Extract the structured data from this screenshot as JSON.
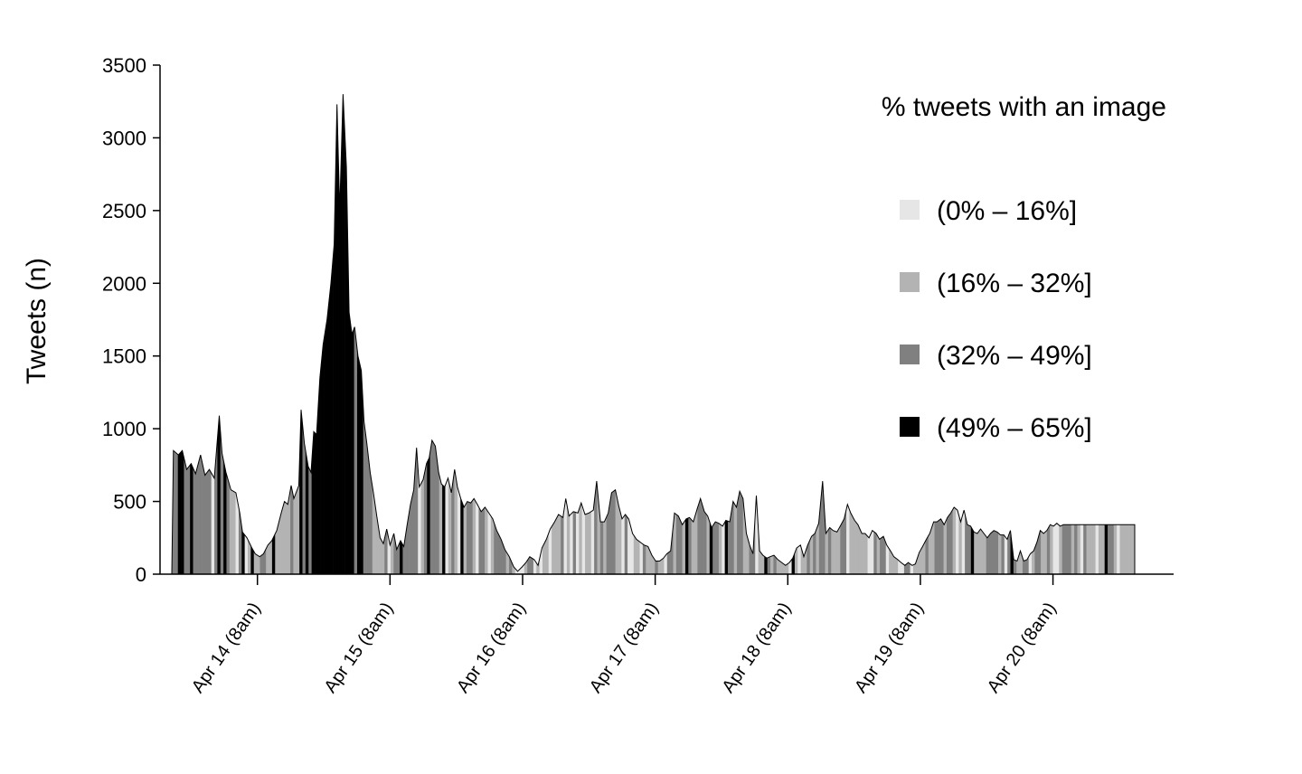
{
  "chart_data": {
    "type": "area",
    "ylabel": "Tweets (n)",
    "xlabel": "",
    "ylim": [
      0,
      3500
    ],
    "y_ticks": [
      0,
      500,
      1000,
      1500,
      2000,
      2500,
      3000,
      3500
    ],
    "x_ticks": [
      {
        "label": "Apr 14 (8am)",
        "hour": 8
      },
      {
        "label": "Apr 15 (8am)",
        "hour": 32
      },
      {
        "label": "Apr 16 (8am)",
        "hour": 56
      },
      {
        "label": "Apr 17 (8am)",
        "hour": 80
      },
      {
        "label": "Apr 18 (8am)",
        "hour": 104
      },
      {
        "label": "Apr 19 (8am)",
        "hour": 128
      },
      {
        "label": "Apr 20 (8am)",
        "hour": 152
      }
    ],
    "xlim_hours": [
      -7.5,
      166.8
    ],
    "series_points": [
      [
        -7.5,
        0
      ],
      [
        -7.2,
        850
      ],
      [
        -6.3,
        820
      ],
      [
        -5.6,
        850
      ],
      [
        -4.8,
        720
      ],
      [
        -4,
        760
      ],
      [
        -3.2,
        690
      ],
      [
        -2.3,
        820
      ],
      [
        -1.5,
        680
      ],
      [
        -0.7,
        720
      ],
      [
        0.2,
        660
      ],
      [
        1.1,
        1090
      ],
      [
        1.6,
        830
      ],
      [
        2.3,
        700
      ],
      [
        3.2,
        580
      ],
      [
        4.1,
        560
      ],
      [
        4.8,
        420
      ],
      [
        5.3,
        290
      ],
      [
        6.1,
        250
      ],
      [
        7.0,
        180
      ],
      [
        7.6,
        140
      ],
      [
        8.4,
        120
      ],
      [
        9.1,
        140
      ],
      [
        9.9,
        200
      ],
      [
        10.6,
        230
      ],
      [
        11.5,
        300
      ],
      [
        12.3,
        420
      ],
      [
        12.9,
        500
      ],
      [
        13.5,
        480
      ],
      [
        14.1,
        610
      ],
      [
        14.6,
        520
      ],
      [
        15.5,
        610
      ],
      [
        15.9,
        1130
      ],
      [
        16.5,
        900
      ],
      [
        17.2,
        740
      ],
      [
        17.7,
        700
      ],
      [
        18.2,
        980
      ],
      [
        18.7,
        960
      ],
      [
        19.3,
        1350
      ],
      [
        19.9,
        1580
      ],
      [
        20.6,
        1750
      ],
      [
        21.3,
        2000
      ],
      [
        21.9,
        2270
      ],
      [
        22.4,
        3230
      ],
      [
        22.9,
        2500
      ],
      [
        23.5,
        3300
      ],
      [
        24.1,
        2800
      ],
      [
        24.6,
        1800
      ],
      [
        25.1,
        1650
      ],
      [
        25.6,
        1700
      ],
      [
        26.2,
        1500
      ],
      [
        26.8,
        1400
      ],
      [
        27.3,
        1050
      ],
      [
        27.8,
        900
      ],
      [
        28.4,
        700
      ],
      [
        29,
        560
      ],
      [
        29.6,
        400
      ],
      [
        30.2,
        250
      ],
      [
        30.8,
        210
      ],
      [
        31.4,
        310
      ],
      [
        32.0,
        200
      ],
      [
        32.7,
        280
      ],
      [
        33.2,
        170
      ],
      [
        33.9,
        230
      ],
      [
        34.5,
        190
      ],
      [
        35.1,
        340
      ],
      [
        35.7,
        480
      ],
      [
        36.3,
        580
      ],
      [
        36.8,
        870
      ],
      [
        37.3,
        600
      ],
      [
        38.0,
        650
      ],
      [
        38.6,
        760
      ],
      [
        39.1,
        800
      ],
      [
        39.6,
        920
      ],
      [
        40.2,
        880
      ],
      [
        40.8,
        700
      ],
      [
        41.3,
        620
      ],
      [
        41.9,
        600
      ],
      [
        42.5,
        660
      ],
      [
        43.1,
        560
      ],
      [
        43.7,
        720
      ],
      [
        44.2,
        600
      ],
      [
        44.8,
        520
      ],
      [
        45.4,
        460
      ],
      [
        46.0,
        500
      ],
      [
        46.6,
        490
      ],
      [
        47.2,
        520
      ],
      [
        47.8,
        480
      ],
      [
        48.5,
        430
      ],
      [
        49.2,
        460
      ],
      [
        49.9,
        420
      ],
      [
        50.6,
        380
      ],
      [
        51.3,
        300
      ],
      [
        52.1,
        240
      ],
      [
        52.8,
        170
      ],
      [
        53.6,
        120
      ],
      [
        54.4,
        50
      ],
      [
        55.1,
        20
      ],
      [
        55.9,
        50
      ],
      [
        56.6,
        80
      ],
      [
        57.3,
        120
      ],
      [
        58.1,
        100
      ],
      [
        58.8,
        60
      ],
      [
        59.5,
        180
      ],
      [
        60.3,
        240
      ],
      [
        61.0,
        310
      ],
      [
        61.8,
        360
      ],
      [
        62.5,
        410
      ],
      [
        63.3,
        390
      ],
      [
        63.8,
        520
      ],
      [
        64.4,
        400
      ],
      [
        65.2,
        430
      ],
      [
        66.0,
        420
      ],
      [
        66.6,
        490
      ],
      [
        67.3,
        410
      ],
      [
        68.0,
        420
      ],
      [
        68.8,
        440
      ],
      [
        69.4,
        640
      ],
      [
        70.1,
        360
      ],
      [
        70.8,
        360
      ],
      [
        71.5,
        420
      ],
      [
        72.1,
        560
      ],
      [
        72.8,
        580
      ],
      [
        73.4,
        470
      ],
      [
        74.0,
        380
      ],
      [
        74.6,
        410
      ],
      [
        75.2,
        380
      ],
      [
        75.9,
        280
      ],
      [
        76.6,
        240
      ],
      [
        77.3,
        220
      ],
      [
        78.0,
        200
      ],
      [
        78.7,
        190
      ],
      [
        79.4,
        130
      ],
      [
        80.1,
        90
      ],
      [
        80.8,
        90
      ],
      [
        81.5,
        110
      ],
      [
        82.1,
        140
      ],
      [
        82.8,
        160
      ],
      [
        83.5,
        420
      ],
      [
        84.2,
        400
      ],
      [
        84.9,
        340
      ],
      [
        85.6,
        380
      ],
      [
        86.2,
        390
      ],
      [
        86.9,
        360
      ],
      [
        87.6,
        450
      ],
      [
        88.2,
        520
      ],
      [
        88.9,
        430
      ],
      [
        89.5,
        400
      ],
      [
        90.2,
        320
      ],
      [
        90.9,
        360
      ],
      [
        91.5,
        350
      ],
      [
        92.2,
        330
      ],
      [
        92.8,
        370
      ],
      [
        93.5,
        360
      ],
      [
        94.1,
        500
      ],
      [
        94.7,
        460
      ],
      [
        95.3,
        570
      ],
      [
        95.9,
        520
      ],
      [
        96.5,
        280
      ],
      [
        97.1,
        200
      ],
      [
        97.7,
        140
      ],
      [
        98.3,
        540
      ],
      [
        98.9,
        160
      ],
      [
        99.5,
        130
      ],
      [
        100.2,
        110
      ],
      [
        100.8,
        120
      ],
      [
        101.5,
        130
      ],
      [
        102.2,
        100
      ],
      [
        102.9,
        80
      ],
      [
        103.6,
        60
      ],
      [
        104.3,
        80
      ],
      [
        104.9,
        110
      ],
      [
        105.6,
        180
      ],
      [
        106.3,
        200
      ],
      [
        106.9,
        120
      ],
      [
        107.6,
        200
      ],
      [
        108.3,
        260
      ],
      [
        108.9,
        280
      ],
      [
        109.6,
        350
      ],
      [
        110.3,
        640
      ],
      [
        110.9,
        280
      ],
      [
        111.6,
        320
      ],
      [
        112.2,
        300
      ],
      [
        112.9,
        290
      ],
      [
        113.5,
        330
      ],
      [
        114.2,
        380
      ],
      [
        114.8,
        480
      ],
      [
        115.4,
        420
      ],
      [
        116.1,
        370
      ],
      [
        116.7,
        340
      ],
      [
        117.4,
        280
      ],
      [
        118.0,
        280
      ],
      [
        118.7,
        250
      ],
      [
        119.3,
        300
      ],
      [
        120.0,
        280
      ],
      [
        120.6,
        240
      ],
      [
        121.3,
        260
      ],
      [
        121.9,
        200
      ],
      [
        122.6,
        160
      ],
      [
        123.2,
        120
      ],
      [
        123.9,
        100
      ],
      [
        124.5,
        80
      ],
      [
        125.2,
        60
      ],
      [
        125.8,
        80
      ],
      [
        126.5,
        60
      ],
      [
        127.1,
        70
      ],
      [
        127.8,
        150
      ],
      [
        128.4,
        190
      ],
      [
        129.1,
        240
      ],
      [
        129.7,
        280
      ],
      [
        130.4,
        360
      ],
      [
        131.0,
        360
      ],
      [
        131.7,
        380
      ],
      [
        132.3,
        340
      ],
      [
        132.9,
        390
      ],
      [
        133.5,
        420
      ],
      [
        134.1,
        460
      ],
      [
        134.7,
        440
      ],
      [
        135.3,
        360
      ],
      [
        135.9,
        440
      ],
      [
        136.5,
        340
      ],
      [
        137.1,
        330
      ],
      [
        137.7,
        290
      ],
      [
        138.3,
        280
      ],
      [
        138.9,
        310
      ],
      [
        139.5,
        280
      ],
      [
        140.1,
        250
      ],
      [
        140.7,
        280
      ],
      [
        141.3,
        300
      ],
      [
        141.9,
        290
      ],
      [
        142.5,
        270
      ],
      [
        143.1,
        270
      ],
      [
        143.7,
        240
      ],
      [
        144.3,
        300
      ],
      [
        144.9,
        100
      ],
      [
        145.5,
        90
      ],
      [
        146.1,
        160
      ],
      [
        146.7,
        90
      ],
      [
        147.3,
        100
      ],
      [
        147.9,
        140
      ],
      [
        148.5,
        160
      ],
      [
        149.1,
        220
      ],
      [
        149.7,
        300
      ],
      [
        150.3,
        280
      ],
      [
        150.9,
        300
      ],
      [
        151.5,
        340
      ],
      [
        152.1,
        330
      ],
      [
        152.7,
        350
      ],
      [
        153.3,
        330
      ],
      [
        153.9,
        340
      ],
      [
        154.5,
        340
      ],
      [
        166.8,
        340
      ],
      [
        166.8,
        0
      ]
    ],
    "color_bins": [
      {
        "label": "(0% – 16%]",
        "color": "#e6e6e6"
      },
      {
        "label": "(16% – 32%]",
        "color": "#b3b3b3"
      },
      {
        "label": "(32% – 49%]",
        "color": "#808080"
      },
      {
        "label": "(49% – 65%]",
        "color": "#000000"
      }
    ],
    "legend": {
      "title": "% tweets with an image",
      "placement": "top-right"
    }
  }
}
